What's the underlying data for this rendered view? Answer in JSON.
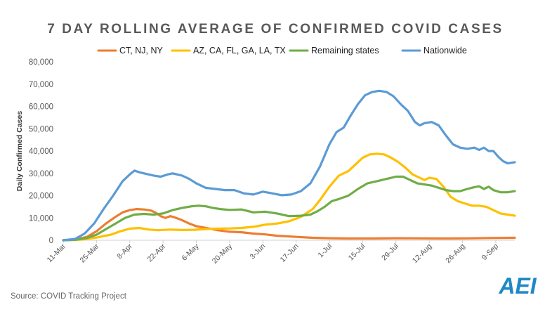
{
  "chart_data": {
    "type": "line",
    "title": "7 DAY ROLLING AVERAGE OF CONFIRMED COVID CASES",
    "ylabel": "Daily Confirmed Cases",
    "xlabel": "",
    "ylim": [
      0,
      80000
    ],
    "y_ticks": [
      "0",
      "10,000",
      "20,000",
      "30,000",
      "40,000",
      "50,000",
      "60,000",
      "70,000",
      "80,000"
    ],
    "x_ticks": [
      {
        "label": "11-Mar",
        "day": 0
      },
      {
        "label": "25-Mar",
        "day": 14
      },
      {
        "label": "8-Apr",
        "day": 28
      },
      {
        "label": "22-Apr",
        "day": 42
      },
      {
        "label": "6-May",
        "day": 56
      },
      {
        "label": "20-May",
        "day": 70
      },
      {
        "label": "3-Jun",
        "day": 84
      },
      {
        "label": "17-Jun",
        "day": 98
      },
      {
        "label": "1-Jul",
        "day": 112
      },
      {
        "label": "15-Jul",
        "day": 126
      },
      {
        "label": "29-Jul",
        "day": 140
      },
      {
        "label": "12-Aug",
        "day": 154
      },
      {
        "label": "26-Aug",
        "day": 168
      },
      {
        "label": "9-Sep",
        "day": 182
      }
    ],
    "x_max_day": 190,
    "grid": false,
    "legend_position": "top",
    "series": [
      {
        "name": "CT, NJ, NY",
        "color": "#ED7D31",
        "points": [
          [
            0,
            0
          ],
          [
            5,
            300
          ],
          [
            10,
            1500
          ],
          [
            14,
            4000
          ],
          [
            18,
            7500
          ],
          [
            22,
            10500
          ],
          [
            25,
            12500
          ],
          [
            28,
            13500
          ],
          [
            31,
            14000
          ],
          [
            34,
            13800
          ],
          [
            37,
            13300
          ],
          [
            39,
            12300
          ],
          [
            41,
            10800
          ],
          [
            43,
            10000
          ],
          [
            45,
            10800
          ],
          [
            47,
            10200
          ],
          [
            50,
            9000
          ],
          [
            53,
            7500
          ],
          [
            56,
            6300
          ],
          [
            60,
            5500
          ],
          [
            65,
            4500
          ],
          [
            70,
            3800
          ],
          [
            75,
            3600
          ],
          [
            80,
            3000
          ],
          [
            85,
            2600
          ],
          [
            90,
            2000
          ],
          [
            98,
            1500
          ],
          [
            105,
            1100
          ],
          [
            112,
            900
          ],
          [
            120,
            800
          ],
          [
            130,
            800
          ],
          [
            140,
            900
          ],
          [
            150,
            850
          ],
          [
            160,
            800
          ],
          [
            170,
            850
          ],
          [
            180,
            1000
          ],
          [
            190,
            1100
          ]
        ]
      },
      {
        "name": "AZ, CA, FL, GA, LA, TX",
        "color": "#FFC000",
        "points": [
          [
            0,
            0
          ],
          [
            8,
            300
          ],
          [
            14,
            1200
          ],
          [
            20,
            2500
          ],
          [
            24,
            4000
          ],
          [
            28,
            5200
          ],
          [
            32,
            5500
          ],
          [
            36,
            4800
          ],
          [
            40,
            4500
          ],
          [
            45,
            4800
          ],
          [
            50,
            4600
          ],
          [
            55,
            4700
          ],
          [
            60,
            5000
          ],
          [
            65,
            5200
          ],
          [
            70,
            5300
          ],
          [
            75,
            5500
          ],
          [
            80,
            6000
          ],
          [
            85,
            7000
          ],
          [
            90,
            7500
          ],
          [
            95,
            8500
          ],
          [
            100,
            10500
          ],
          [
            105,
            14000
          ],
          [
            108,
            18000
          ],
          [
            112,
            24000
          ],
          [
            116,
            29000
          ],
          [
            120,
            31000
          ],
          [
            123,
            34000
          ],
          [
            126,
            37000
          ],
          [
            129,
            38500
          ],
          [
            132,
            38800
          ],
          [
            135,
            38500
          ],
          [
            138,
            37000
          ],
          [
            141,
            35000
          ],
          [
            144,
            32500
          ],
          [
            147,
            29500
          ],
          [
            150,
            28000
          ],
          [
            152,
            27000
          ],
          [
            154,
            28000
          ],
          [
            157,
            27500
          ],
          [
            160,
            24000
          ],
          [
            163,
            19500
          ],
          [
            166,
            17500
          ],
          [
            169,
            16500
          ],
          [
            172,
            15500
          ],
          [
            175,
            15500
          ],
          [
            178,
            15000
          ],
          [
            181,
            13500
          ],
          [
            184,
            12000
          ],
          [
            187,
            11500
          ],
          [
            190,
            11000
          ]
        ]
      },
      {
        "name": "Remaining states",
        "color": "#70AD47",
        "points": [
          [
            0,
            0
          ],
          [
            5,
            200
          ],
          [
            10,
            1000
          ],
          [
            14,
            2500
          ],
          [
            18,
            5000
          ],
          [
            22,
            7500
          ],
          [
            26,
            10000
          ],
          [
            30,
            11500
          ],
          [
            34,
            11800
          ],
          [
            38,
            11500
          ],
          [
            42,
            12000
          ],
          [
            46,
            13500
          ],
          [
            50,
            14500
          ],
          [
            54,
            15200
          ],
          [
            57,
            15500
          ],
          [
            60,
            15200
          ],
          [
            63,
            14500
          ],
          [
            66,
            14000
          ],
          [
            70,
            13600
          ],
          [
            75,
            13800
          ],
          [
            80,
            12500
          ],
          [
            85,
            12800
          ],
          [
            90,
            12000
          ],
          [
            95,
            10800
          ],
          [
            100,
            11000
          ],
          [
            104,
            11500
          ],
          [
            107,
            13000
          ],
          [
            110,
            15000
          ],
          [
            113,
            17500
          ],
          [
            116,
            18500
          ],
          [
            120,
            20000
          ],
          [
            124,
            23000
          ],
          [
            128,
            25500
          ],
          [
            132,
            26500
          ],
          [
            136,
            27500
          ],
          [
            140,
            28500
          ],
          [
            143,
            28500
          ],
          [
            146,
            27000
          ],
          [
            149,
            25500
          ],
          [
            152,
            25000
          ],
          [
            155,
            24500
          ],
          [
            158,
            23500
          ],
          [
            161,
            22500
          ],
          [
            164,
            22000
          ],
          [
            167,
            22000
          ],
          [
            170,
            23000
          ],
          [
            173,
            23800
          ],
          [
            175,
            24200
          ],
          [
            177,
            23000
          ],
          [
            179,
            24000
          ],
          [
            181,
            22500
          ],
          [
            184,
            21500
          ],
          [
            187,
            21500
          ],
          [
            190,
            22000
          ]
        ]
      },
      {
        "name": "Nationwide",
        "color": "#5B9BD5",
        "points": [
          [
            0,
            0
          ],
          [
            5,
            600
          ],
          [
            9,
            3000
          ],
          [
            13,
            7500
          ],
          [
            17,
            14000
          ],
          [
            21,
            20000
          ],
          [
            25,
            26500
          ],
          [
            28,
            29500
          ],
          [
            30,
            31200
          ],
          [
            32,
            30500
          ],
          [
            34,
            30000
          ],
          [
            38,
            29000
          ],
          [
            41,
            28500
          ],
          [
            44,
            29500
          ],
          [
            46,
            30000
          ],
          [
            50,
            29000
          ],
          [
            53,
            27500
          ],
          [
            56,
            25500
          ],
          [
            60,
            23500
          ],
          [
            64,
            23000
          ],
          [
            68,
            22500
          ],
          [
            72,
            22500
          ],
          [
            76,
            21000
          ],
          [
            80,
            20500
          ],
          [
            84,
            21800
          ],
          [
            88,
            21000
          ],
          [
            92,
            20200
          ],
          [
            96,
            20500
          ],
          [
            100,
            22000
          ],
          [
            104,
            25500
          ],
          [
            108,
            33000
          ],
          [
            112,
            43000
          ],
          [
            115,
            48500
          ],
          [
            118,
            50500
          ],
          [
            121,
            56000
          ],
          [
            124,
            61000
          ],
          [
            127,
            65000
          ],
          [
            130,
            66500
          ],
          [
            133,
            67000
          ],
          [
            136,
            66500
          ],
          [
            139,
            64500
          ],
          [
            142,
            61000
          ],
          [
            145,
            58000
          ],
          [
            148,
            53000
          ],
          [
            150,
            51500
          ],
          [
            152,
            52500
          ],
          [
            155,
            53000
          ],
          [
            158,
            51500
          ],
          [
            161,
            47000
          ],
          [
            164,
            43000
          ],
          [
            167,
            41500
          ],
          [
            170,
            41000
          ],
          [
            173,
            41500
          ],
          [
            175,
            40500
          ],
          [
            177,
            41500
          ],
          [
            179,
            40000
          ],
          [
            181,
            40000
          ],
          [
            183,
            37500
          ],
          [
            185,
            35500
          ],
          [
            187,
            34500
          ],
          [
            190,
            35000
          ]
        ]
      }
    ]
  },
  "source": "Source: COVID Tracking Project",
  "logo": {
    "text": "AEI",
    "color": "#1E88C7"
  }
}
